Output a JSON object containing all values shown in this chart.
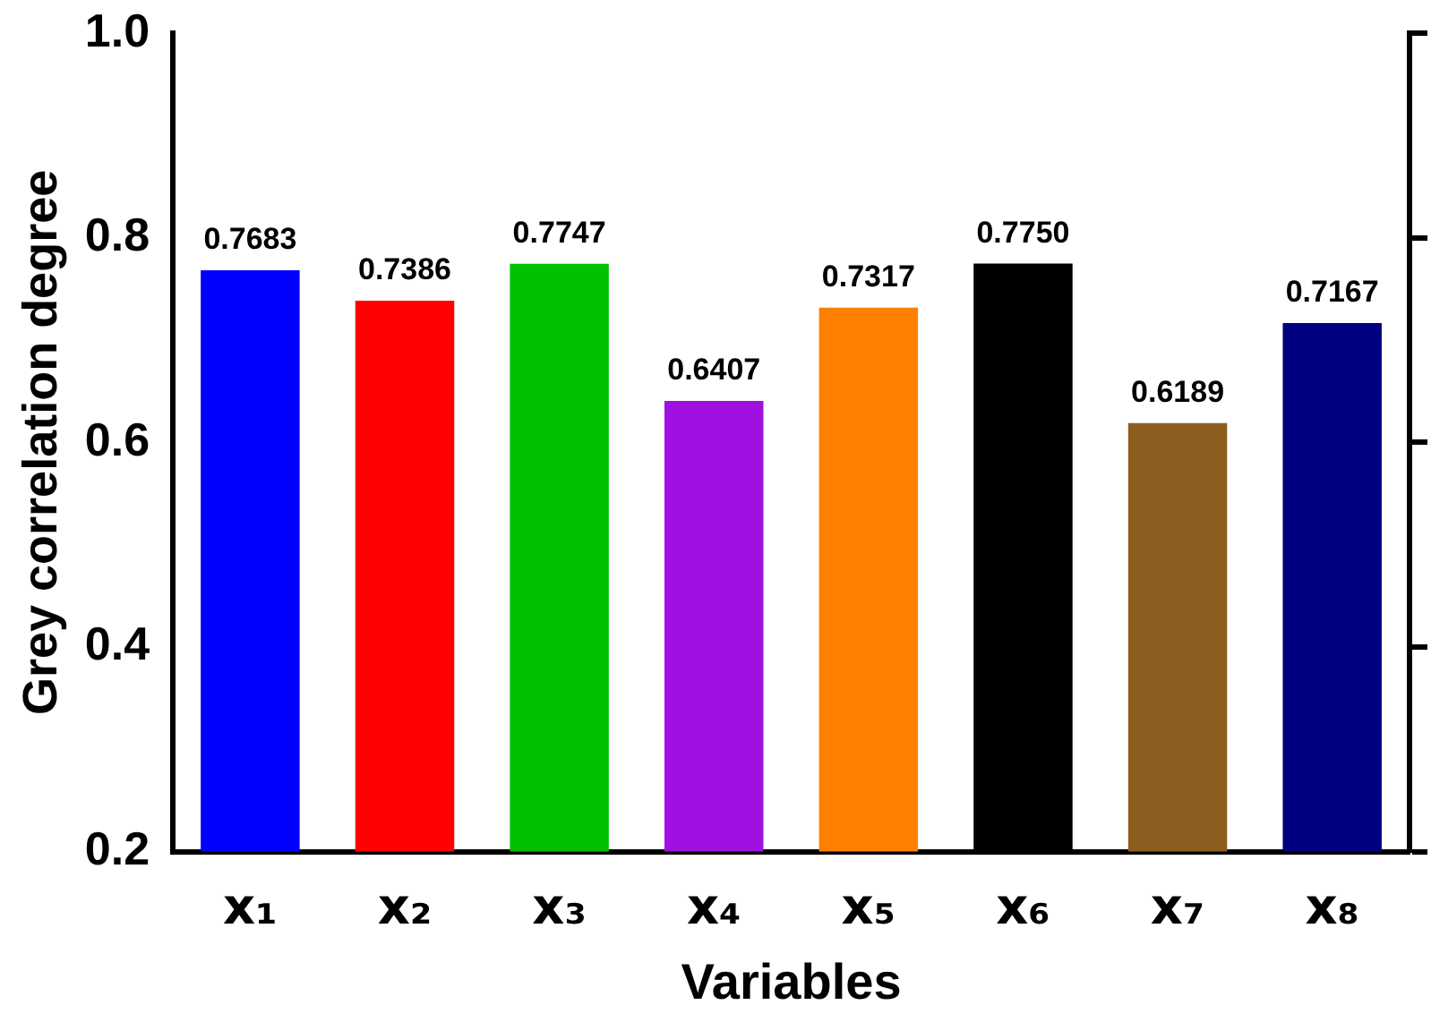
{
  "chart_data": {
    "type": "bar",
    "xlabel": "Variables",
    "ylabel": "Grey correlation degree",
    "categories": [
      "x₁",
      "x₂",
      "x₃",
      "x₄",
      "x₅",
      "x₆",
      "x₇",
      "x₈"
    ],
    "values": [
      0.7683,
      0.7386,
      0.7747,
      0.6407,
      0.7317,
      0.775,
      0.6189,
      0.7167
    ],
    "value_labels": [
      "0.7683",
      "0.7386",
      "0.7747",
      "0.6407",
      "0.7317",
      "0.7750",
      "0.6189",
      "0.7167"
    ],
    "colors": [
      "#0000ff",
      "#ff0000",
      "#00c000",
      "#a010e0",
      "#ff8000",
      "#000000",
      "#8b5e20",
      "#000080"
    ],
    "ylim": [
      0.2,
      1.0
    ],
    "yticks": [
      0.2,
      0.4,
      0.6,
      0.8,
      {
        "value": 1.0,
        "label": "1.0"
      }
    ],
    "grid": false,
    "legend": false
  }
}
